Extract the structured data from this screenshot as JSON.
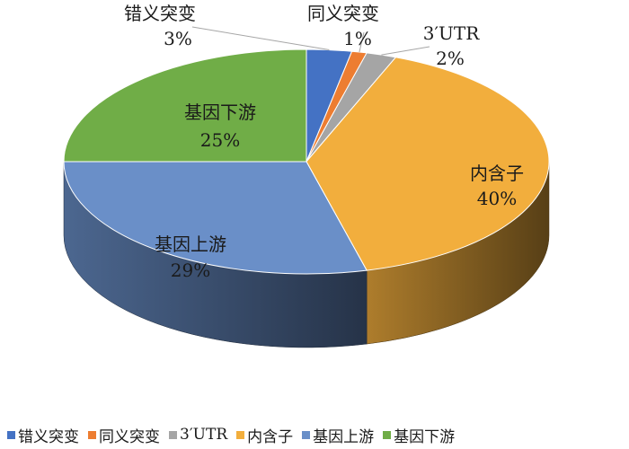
{
  "chart_data": {
    "type": "pie",
    "style": "3d",
    "categories": [
      "错义突变",
      "同义突变",
      "3′UTR",
      "内含子",
      "基因上游",
      "基因下游"
    ],
    "values": [
      3,
      1,
      2,
      40,
      29,
      25
    ],
    "data_labels": [
      "3%",
      "1%",
      "2%",
      "40%",
      "29%",
      "25%"
    ],
    "colors": [
      "#4472c4",
      "#ed7d31",
      "#a5a5a5",
      "#f2ae3d",
      "#6a8fc8",
      "#70ad47"
    ],
    "legend_position": "bottom"
  }
}
